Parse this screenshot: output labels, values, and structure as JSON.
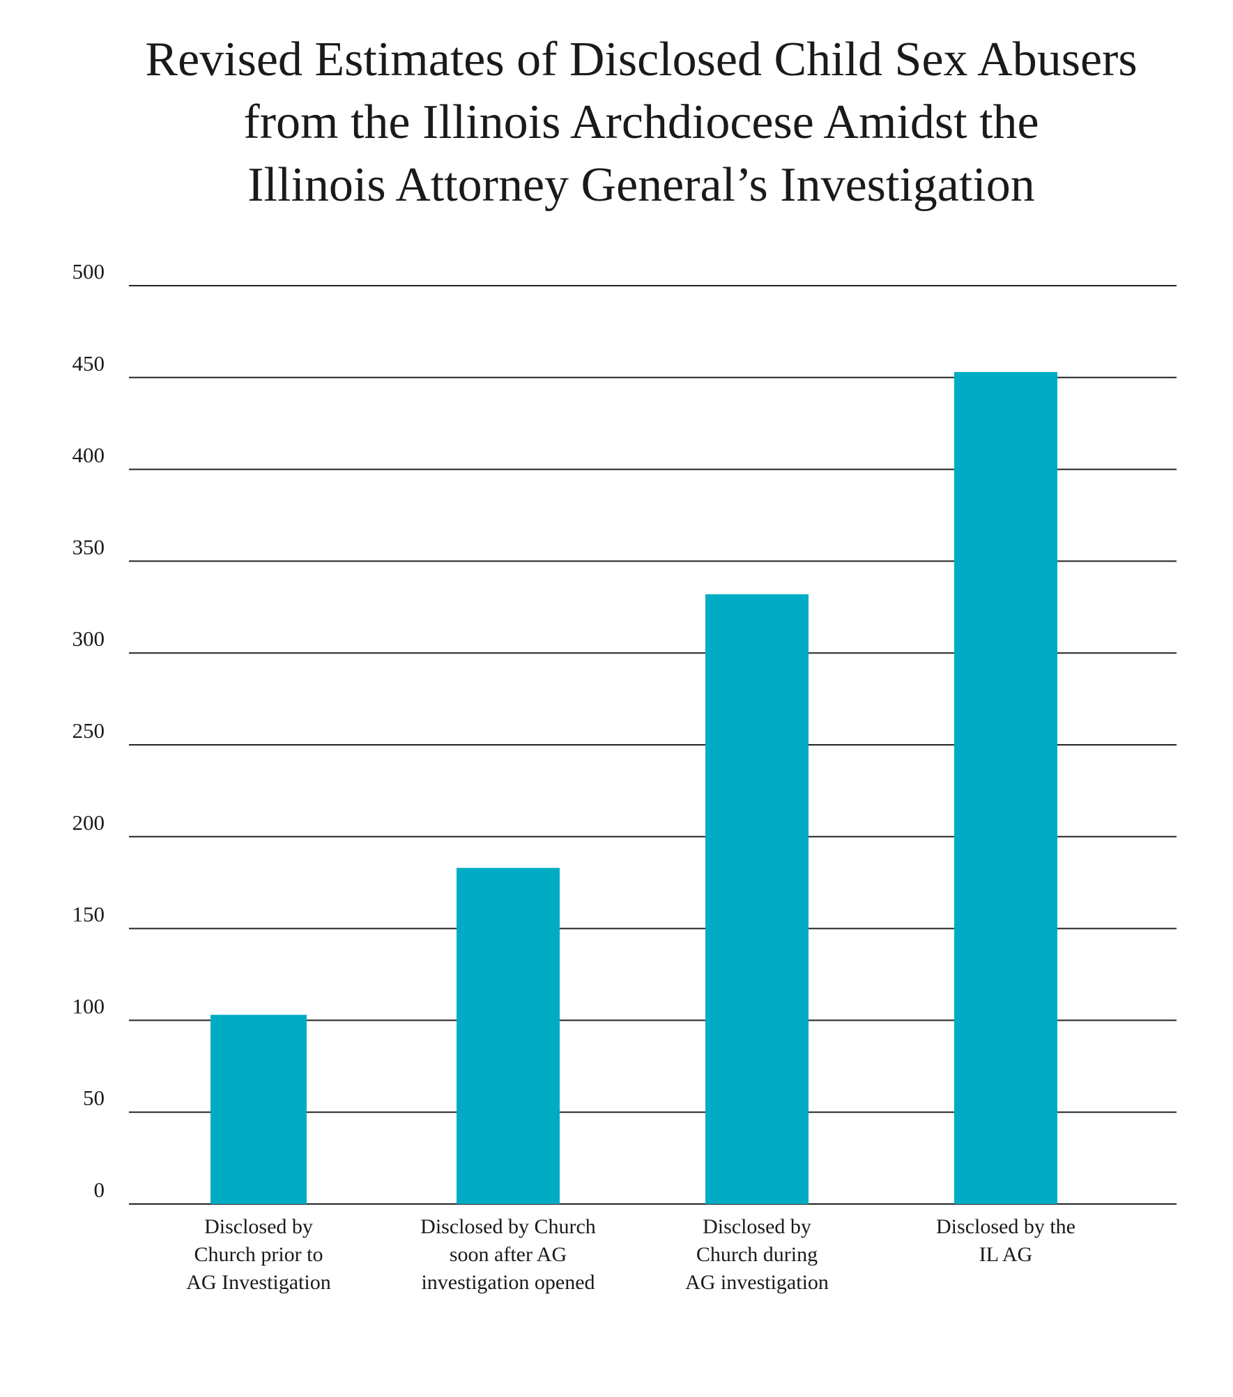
{
  "chart_data": {
    "type": "bar",
    "title_lines": [
      "Revised Estimates of Disclosed Child Sex Abusers",
      "from the Illinois Archdiocese Amidst the",
      "Illinois Attorney General’s Investigation"
    ],
    "categories": [
      [
        "Disclosed by",
        "Church prior to",
        "AG Investigation"
      ],
      [
        "Disclosed by Church",
        "soon after AG",
        "investigation opened"
      ],
      [
        "Disclosed by",
        "Church during",
        "AG investigation"
      ],
      [
        "Disclosed by the",
        "IL AG"
      ]
    ],
    "values": [
      103,
      183,
      332,
      453
    ],
    "ylim": [
      0,
      500
    ],
    "yticks": [
      0,
      50,
      100,
      150,
      200,
      250,
      300,
      350,
      400,
      450,
      500
    ],
    "xlabel": "",
    "ylabel": "",
    "grid": true,
    "bar_color": "#00acc4"
  }
}
